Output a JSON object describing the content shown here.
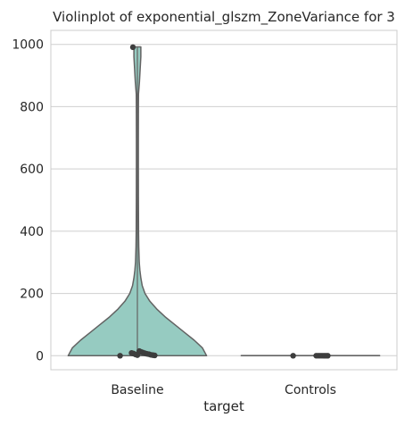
{
  "chart_data": {
    "type": "violin",
    "title": "Violinplot of exponential_glszm_ZoneVariance for 3",
    "xlabel": "target",
    "ylabel": "",
    "categories": [
      "Baseline",
      "Controls"
    ],
    "ylim": [
      -45,
      1045
    ],
    "yticks": [
      0,
      200,
      400,
      600,
      800,
      1000
    ],
    "ytick_labels": [
      "0",
      "200",
      "400",
      "600",
      "800",
      "1000"
    ],
    "grid": true,
    "colors": {
      "violin_fill": "#96cbc1",
      "violin_edge": "#636363",
      "points": "#3d3d3d",
      "grid": "#cfcfcf",
      "frame": "#cccccc"
    },
    "violins": [
      {
        "category": "Baseline",
        "min": 0,
        "max": 992,
        "profile": [
          [
            0,
            1.0
          ],
          [
            25,
            0.94
          ],
          [
            50,
            0.82
          ],
          [
            75,
            0.68
          ],
          [
            100,
            0.54
          ],
          [
            125,
            0.4
          ],
          [
            150,
            0.28
          ],
          [
            175,
            0.18
          ],
          [
            200,
            0.11
          ],
          [
            225,
            0.07
          ],
          [
            250,
            0.05
          ],
          [
            275,
            0.036
          ],
          [
            300,
            0.027
          ],
          [
            350,
            0.02
          ],
          [
            400,
            0.017
          ],
          [
            500,
            0.015
          ],
          [
            600,
            0.014
          ],
          [
            700,
            0.014
          ],
          [
            800,
            0.015
          ],
          [
            840,
            0.016
          ],
          [
            880,
            0.03
          ],
          [
            920,
            0.04
          ],
          [
            960,
            0.05
          ],
          [
            992,
            0.05
          ]
        ],
        "points": [
          0,
          1,
          2,
          3,
          5,
          6,
          8,
          10,
          12,
          15,
          2,
          4,
          7,
          9,
          991
        ]
      },
      {
        "category": "Controls",
        "min": 0,
        "max": 0.5,
        "profile": [
          [
            0,
            1.0
          ],
          [
            0.5,
            1.0
          ]
        ],
        "points": [
          0,
          0.01,
          0.02,
          0.03,
          0.05,
          0.08,
          0.1,
          0.12
        ]
      }
    ]
  }
}
